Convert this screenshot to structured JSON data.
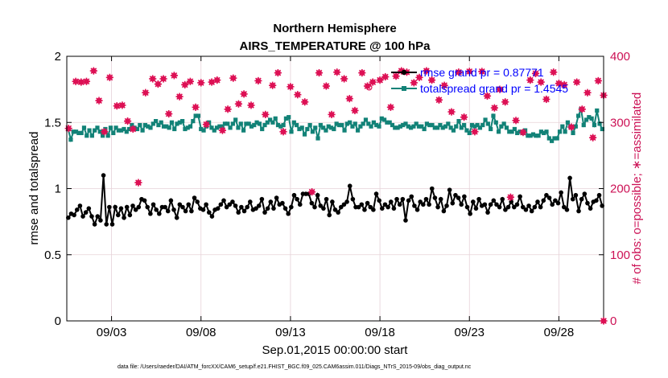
{
  "chart_data": {
    "type": "line",
    "title": "Northern Hemisphere",
    "subtitle": "AIRS_TEMPERATURE @ 100 hPa",
    "xlabel": "Sep.01,2015 00:00:00 start",
    "ylabel": "rmse and totalspread",
    "y2label": "# of obs: o=possible; ∗=assimilated",
    "footnote": "data file: /Users/raeder/DAI/ATM_forcXX/CAM6_setup/f.e21.FHIST_BGC.f09_025.CAM6assim.011/Diags_NTrS_2015-09/obs_diag_output.nc",
    "xlim": [
      0.5,
      30.5
    ],
    "ylim": [
      0,
      2
    ],
    "y2lim": [
      0,
      400
    ],
    "grid": true,
    "legend_position": "top-right",
    "x_ticks": [
      3,
      8,
      13,
      18,
      23,
      28
    ],
    "x_tick_labels": [
      "09/03",
      "09/08",
      "09/13",
      "09/18",
      "09/23",
      "09/28"
    ],
    "y_ticks": [
      0,
      0.5,
      1,
      1.5,
      2
    ],
    "y_tick_labels": [
      "0",
      "0.5",
      "1",
      "1.5",
      "2"
    ],
    "y2_ticks": [
      0,
      100,
      200,
      300,
      400
    ],
    "y2_tick_labels": [
      "0",
      "100",
      "200",
      "300",
      "400"
    ],
    "colors": {
      "rmse": "#000000",
      "totalspread": "#128277",
      "obs": "#dd1155",
      "legend_text": "#0000ff",
      "right_axis": "#cc1155"
    },
    "series": [
      {
        "name": "rmse grand pr = 0.87771",
        "axis": "left",
        "marker": "filled-circle",
        "values": [
          0.78,
          0.81,
          0.8,
          0.84,
          0.87,
          0.79,
          0.82,
          0.85,
          0.79,
          0.73,
          0.79,
          0.76,
          1.1,
          0.73,
          0.86,
          0.73,
          0.86,
          0.8,
          0.85,
          0.78,
          0.86,
          0.8,
          0.87,
          0.84,
          0.86,
          0.92,
          0.91,
          0.86,
          0.81,
          0.88,
          0.84,
          0.81,
          0.86,
          0.86,
          0.83,
          0.91,
          0.84,
          0.78,
          0.88,
          0.86,
          0.83,
          0.88,
          0.83,
          0.93,
          0.9,
          0.85,
          0.84,
          0.88,
          0.82,
          0.79,
          0.84,
          0.85,
          0.88,
          0.91,
          0.86,
          0.88,
          0.9,
          0.87,
          0.82,
          0.86,
          0.83,
          0.86,
          0.9,
          0.84,
          0.85,
          0.87,
          0.92,
          0.82,
          0.85,
          0.9,
          0.85,
          0.93,
          0.88,
          0.89,
          0.85,
          0.81,
          0.86,
          0.95,
          0.92,
          0.88,
          0.96,
          0.96,
          0.96,
          0.89,
          0.86,
          0.95,
          0.87,
          0.85,
          0.92,
          0.8,
          0.9,
          0.84,
          0.82,
          0.86,
          0.88,
          0.9,
          1.02,
          0.92,
          0.86,
          0.86,
          0.88,
          0.84,
          0.89,
          0.86,
          0.84,
          0.96,
          0.91,
          0.85,
          0.88,
          0.86,
          0.9,
          0.85,
          0.92,
          0.88,
          0.92,
          0.76,
          0.91,
          0.94,
          0.87,
          0.84,
          0.9,
          0.88,
          0.92,
          0.88,
          1.0,
          0.93,
          0.86,
          0.92,
          0.83,
          0.87,
          0.99,
          0.89,
          0.95,
          0.93,
          0.88,
          0.94,
          0.86,
          0.81,
          0.9,
          0.85,
          0.92,
          0.87,
          0.88,
          0.82,
          0.88,
          0.91,
          0.88,
          0.86,
          0.92,
          0.84,
          0.86,
          0.9,
          0.86,
          0.88,
          0.94,
          0.86,
          0.84,
          0.87,
          0.83,
          0.86,
          0.9,
          0.86,
          0.91,
          0.95,
          0.93,
          0.88,
          0.91,
          0.89,
          0.97,
          0.86,
          0.84,
          1.08,
          0.92,
          0.95,
          0.83,
          0.92,
          0.96,
          0.89,
          0.85,
          0.9,
          0.91,
          0.95,
          0.87
        ]
      },
      {
        "name": "totalspread grand pr = 1.4545",
        "axis": "left",
        "marker": "filled-square",
        "values": [
          1.45,
          1.37,
          1.43,
          1.43,
          1.42,
          1.42,
          1.46,
          1.4,
          1.44,
          1.4,
          1.44,
          1.46,
          1.43,
          1.4,
          1.45,
          1.4,
          1.46,
          1.42,
          1.46,
          1.44,
          1.44,
          1.45,
          1.43,
          1.45,
          1.48,
          1.46,
          1.45,
          1.48,
          1.44,
          1.48,
          1.47,
          1.46,
          1.49,
          1.51,
          1.48,
          1.5,
          1.47,
          1.47,
          1.46,
          1.5,
          1.45,
          1.49,
          1.5,
          1.51,
          1.45,
          1.46,
          1.47,
          1.51,
          1.55,
          1.55,
          1.45,
          1.44,
          1.47,
          1.5,
          1.46,
          1.44,
          1.46,
          1.47,
          1.47,
          1.49,
          1.49,
          1.46,
          1.49,
          1.52,
          1.46,
          1.49,
          1.44,
          1.49,
          1.49,
          1.47,
          1.48,
          1.5,
          1.49,
          1.45,
          1.48,
          1.5,
          1.52,
          1.5,
          1.53,
          1.48,
          1.47,
          1.48,
          1.53,
          1.54,
          1.43,
          1.5,
          1.48,
          1.45,
          1.46,
          1.41,
          1.45,
          1.48,
          1.43,
          1.46,
          1.38,
          1.48,
          1.46,
          1.44,
          1.47,
          1.46,
          1.45,
          1.49,
          1.48,
          1.48,
          1.44,
          1.49,
          1.5,
          1.47,
          1.49,
          1.44,
          1.47,
          1.49,
          1.52,
          1.49,
          1.47,
          1.5,
          1.48,
          1.47,
          1.53,
          1.52,
          1.5,
          1.5,
          1.48,
          1.46,
          1.46,
          1.47,
          1.48,
          1.49,
          1.47,
          1.46,
          1.47,
          1.49,
          1.47,
          1.47,
          1.45,
          1.49,
          1.48,
          1.48,
          1.46,
          1.46,
          1.48,
          1.46,
          1.47,
          1.49,
          1.46,
          1.44,
          1.47,
          1.51,
          1.46,
          1.48,
          1.44,
          1.42,
          1.48,
          1.47,
          1.48,
          1.46,
          1.48,
          1.52,
          1.49,
          1.45,
          1.55,
          1.5,
          1.43,
          1.47,
          1.49,
          1.46,
          1.43,
          1.43,
          1.45,
          1.42,
          1.43,
          1.42,
          1.44,
          1.4,
          1.4,
          1.41,
          1.4,
          1.4,
          1.43,
          1.42,
          1.43,
          1.38,
          1.36,
          1.38,
          1.38,
          1.43,
          1.47,
          1.43,
          1.5,
          1.47,
          1.42,
          1.47,
          1.55,
          1.6,
          1.48,
          1.52,
          1.54,
          1.53,
          1.48,
          1.59,
          1.49,
          1.45
        ]
      },
      {
        "name": "obs assimilated",
        "axis": "right",
        "marker": "asterisk",
        "points": [
          [
            0.6,
            291
          ],
          [
            1.0,
            362
          ],
          [
            1.3,
            361
          ],
          [
            1.6,
            362
          ],
          [
            2.0,
            378
          ],
          [
            2.3,
            333
          ],
          [
            2.6,
            286
          ],
          [
            2.9,
            368
          ],
          [
            3.3,
            325
          ],
          [
            3.6,
            326
          ],
          [
            3.9,
            302
          ],
          [
            4.2,
            290
          ],
          [
            4.5,
            209
          ],
          [
            4.9,
            345
          ],
          [
            5.3,
            366
          ],
          [
            5.6,
            358
          ],
          [
            5.9,
            366
          ],
          [
            6.2,
            313
          ],
          [
            6.5,
            371
          ],
          [
            6.8,
            339
          ],
          [
            7.1,
            357
          ],
          [
            7.4,
            362
          ],
          [
            7.7,
            323
          ],
          [
            8.0,
            360
          ],
          [
            8.3,
            297
          ],
          [
            8.6,
            361
          ],
          [
            8.9,
            364
          ],
          [
            9.2,
            288
          ],
          [
            9.5,
            320
          ],
          [
            9.8,
            367
          ],
          [
            10.1,
            328
          ],
          [
            10.4,
            343
          ],
          [
            10.8,
            326
          ],
          [
            11.2,
            363
          ],
          [
            11.6,
            312
          ],
          [
            12.0,
            356
          ],
          [
            12.3,
            375
          ],
          [
            12.6,
            286
          ],
          [
            13.0,
            354
          ],
          [
            13.4,
            342
          ],
          [
            13.8,
            331
          ],
          [
            14.2,
            195
          ],
          [
            14.6,
            375
          ],
          [
            15.0,
            355
          ],
          [
            15.3,
            312
          ],
          [
            15.6,
            376
          ],
          [
            16.0,
            366
          ],
          [
            16.3,
            336
          ],
          [
            16.6,
            318
          ],
          [
            17.0,
            375
          ],
          [
            17.3,
            355
          ],
          [
            17.6,
            361
          ],
          [
            18.0,
            364
          ],
          [
            18.3,
            369
          ],
          [
            18.6,
            323
          ],
          [
            18.9,
            370
          ],
          [
            19.2,
            378
          ],
          [
            19.5,
            376
          ],
          [
            19.9,
            360
          ],
          [
            20.2,
            368
          ],
          [
            20.6,
            378
          ],
          [
            20.9,
            364
          ],
          [
            21.3,
            334
          ],
          [
            21.6,
            356
          ],
          [
            22.0,
            316
          ],
          [
            22.4,
            376
          ],
          [
            22.7,
            308
          ],
          [
            23.0,
            377
          ],
          [
            23.3,
            286
          ],
          [
            23.7,
            377
          ],
          [
            24.0,
            340
          ],
          [
            24.4,
            322
          ],
          [
            24.7,
            350
          ],
          [
            25.0,
            331
          ],
          [
            25.3,
            187
          ],
          [
            25.6,
            303
          ],
          [
            26.0,
            285
          ],
          [
            26.4,
            364
          ],
          [
            26.7,
            374
          ],
          [
            27.0,
            361
          ],
          [
            27.3,
            335
          ],
          [
            27.7,
            376
          ],
          [
            28.0,
            359
          ],
          [
            28.3,
            357
          ],
          [
            28.7,
            293
          ],
          [
            29.0,
            361
          ],
          [
            29.3,
            320
          ],
          [
            29.6,
            345
          ],
          [
            29.9,
            277
          ],
          [
            30.2,
            363
          ],
          [
            30.5,
            341
          ]
        ]
      },
      {
        "name": "obs possible",
        "axis": "right",
        "marker": "open-circle",
        "points": [
          [
            17.4,
            353
          ]
        ]
      }
    ]
  }
}
